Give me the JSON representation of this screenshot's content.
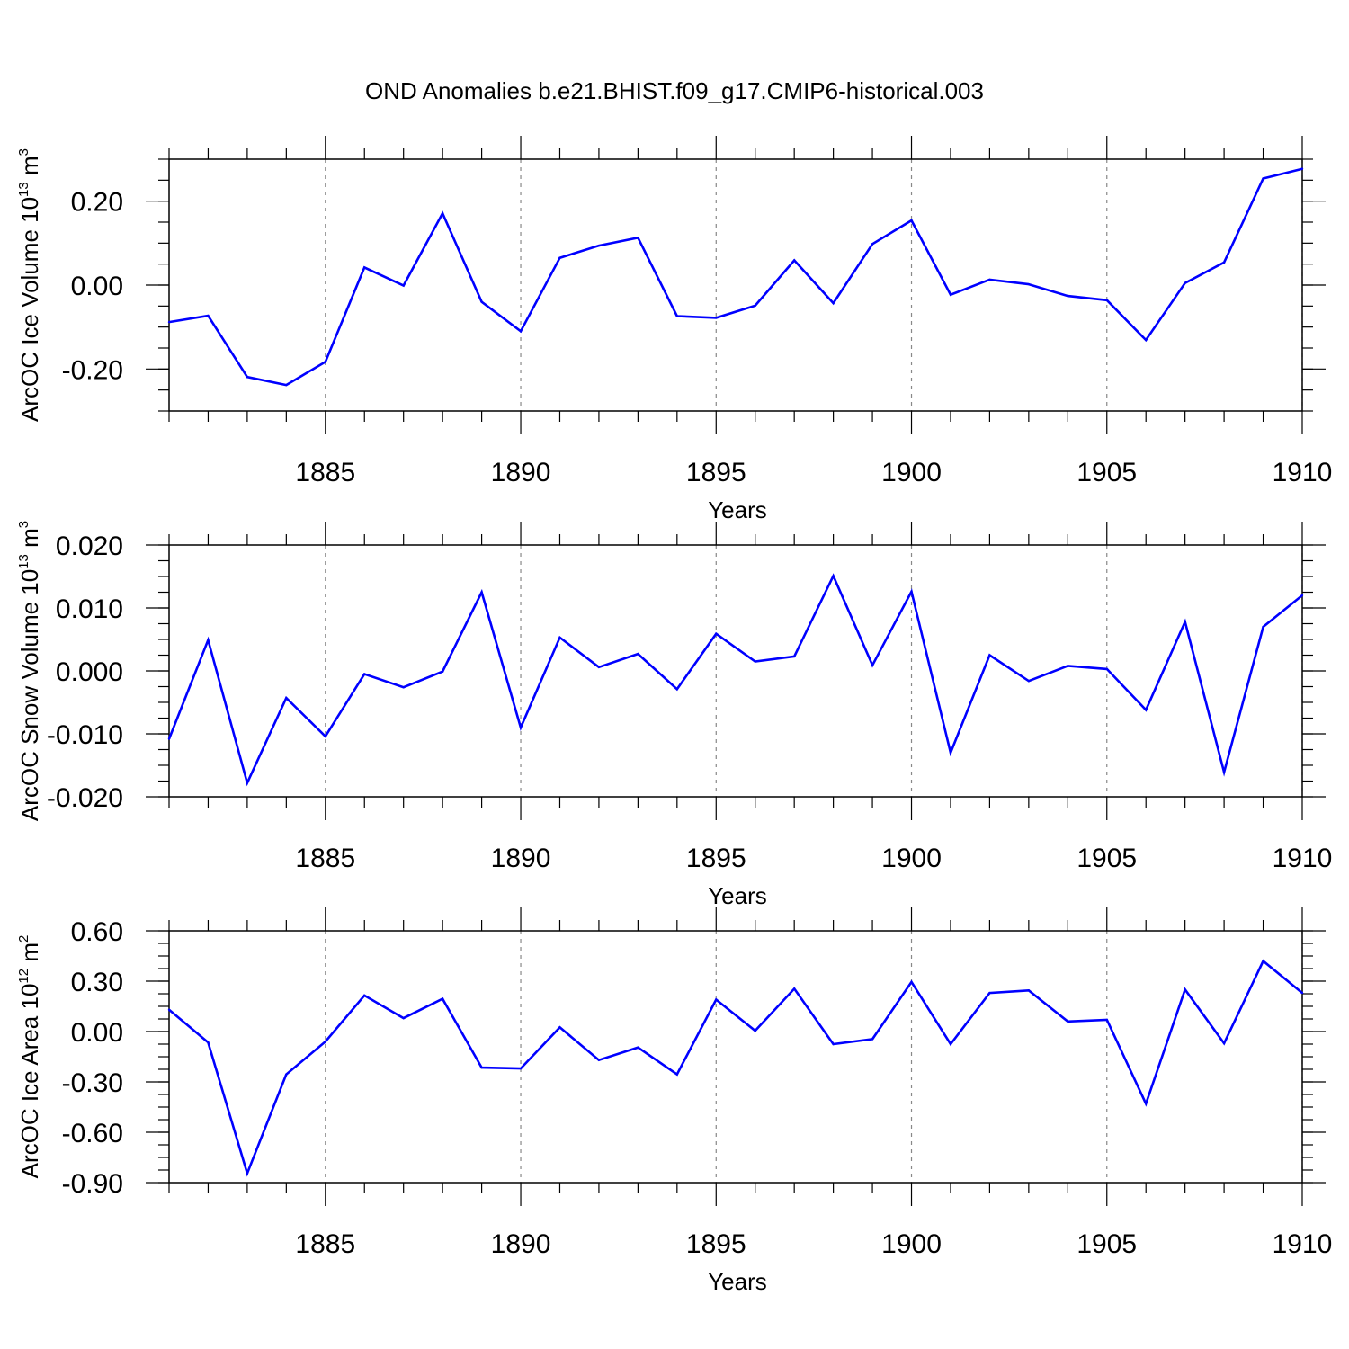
{
  "figure": {
    "title": "OND Anomalies b.e21.BHIST.f09_g17.CMIP6-historical.003",
    "line_color": "#0000ff",
    "grid_color": "#888888"
  },
  "chart_data": [
    {
      "type": "line",
      "title": "",
      "xlabel": "Years",
      "ylabel": {
        "prefix": "ArcOC Ice Volume 10",
        "exp": "13",
        "unit": " m",
        "unit_exp": "3"
      },
      "xlim": [
        1881,
        1910
      ],
      "ylim": [
        -0.3,
        0.3
      ],
      "x_ticks": [
        1885,
        1890,
        1895,
        1900,
        1905,
        1910
      ],
      "x_tick_labels": [
        "1885",
        "1890",
        "1895",
        "1900",
        "1905",
        "1910"
      ],
      "y_ticks": [
        -0.2,
        0.0,
        0.2
      ],
      "y_tick_labels": [
        "-0.20",
        "0.00",
        "0.20"
      ],
      "y_minor_step": 0.05,
      "grid": "vertical-dashed",
      "x": [
        1881,
        1882,
        1883,
        1884,
        1885,
        1886,
        1887,
        1888,
        1889,
        1890,
        1891,
        1892,
        1893,
        1894,
        1895,
        1896,
        1897,
        1898,
        1899,
        1900,
        1901,
        1902,
        1903,
        1904,
        1905,
        1906,
        1907,
        1908,
        1909,
        1910
      ],
      "values": [
        -0.088,
        -0.073,
        -0.219,
        -0.238,
        -0.183,
        0.042,
        -0.001,
        0.171,
        -0.04,
        -0.11,
        0.065,
        0.094,
        0.113,
        -0.074,
        -0.078,
        -0.049,
        0.059,
        -0.043,
        0.098,
        0.154,
        -0.023,
        0.013,
        0.002,
        -0.026,
        -0.036,
        -0.131,
        0.005,
        0.054,
        0.254,
        0.277
      ]
    },
    {
      "type": "line",
      "title": "",
      "xlabel": "Years",
      "ylabel": {
        "prefix": "ArcOC Snow Volume 10",
        "exp": "13",
        "unit": " m",
        "unit_exp": "3"
      },
      "xlim": [
        1881,
        1910
      ],
      "ylim": [
        -0.02,
        0.02
      ],
      "x_ticks": [
        1885,
        1890,
        1895,
        1900,
        1905,
        1910
      ],
      "x_tick_labels": [
        "1885",
        "1890",
        "1895",
        "1900",
        "1905",
        "1910"
      ],
      "y_ticks": [
        -0.02,
        -0.01,
        0.0,
        0.01,
        0.02
      ],
      "y_tick_labels": [
        "-0.020",
        "-0.010",
        "0.000",
        "0.010",
        "0.020"
      ],
      "y_minor_step": 0.0025,
      "grid": "vertical-dashed",
      "x": [
        1881,
        1882,
        1883,
        1884,
        1885,
        1886,
        1887,
        1888,
        1889,
        1890,
        1891,
        1892,
        1893,
        1894,
        1895,
        1896,
        1897,
        1898,
        1899,
        1900,
        1901,
        1902,
        1903,
        1904,
        1905,
        1906,
        1907,
        1908,
        1909,
        1910
      ],
      "values": [
        -0.0108,
        0.0049,
        -0.0178,
        -0.0043,
        -0.0104,
        -0.0005,
        -0.0026,
        -0.0001,
        0.0125,
        -0.009,
        0.0053,
        0.0006,
        0.0027,
        -0.0029,
        0.0059,
        0.0015,
        0.0023,
        0.0151,
        0.0009,
        0.0126,
        -0.013,
        0.0025,
        -0.0016,
        0.0008,
        0.0003,
        -0.0062,
        0.0078,
        -0.0161,
        0.007,
        0.012
      ]
    },
    {
      "type": "line",
      "title": "",
      "xlabel": "Years",
      "ylabel": {
        "prefix": "ArcOC Ice Area 10",
        "exp": "12",
        "unit": " m",
        "unit_exp": "2"
      },
      "xlim": [
        1881,
        1910
      ],
      "ylim": [
        -0.9,
        0.6
      ],
      "x_ticks": [
        1885,
        1890,
        1895,
        1900,
        1905,
        1910
      ],
      "x_tick_labels": [
        "1885",
        "1890",
        "1895",
        "1900",
        "1905",
        "1910"
      ],
      "y_ticks": [
        -0.9,
        -0.6,
        -0.3,
        0.0,
        0.3,
        0.6
      ],
      "y_tick_labels": [
        "-0.90",
        "-0.60",
        "-0.30",
        "0.00",
        "0.30",
        "0.60"
      ],
      "y_minor_step": 0.075,
      "grid": "vertical-dashed",
      "x": [
        1881,
        1882,
        1883,
        1884,
        1885,
        1886,
        1887,
        1888,
        1889,
        1890,
        1891,
        1892,
        1893,
        1894,
        1895,
        1896,
        1897,
        1898,
        1899,
        1900,
        1901,
        1902,
        1903,
        1904,
        1905,
        1906,
        1907,
        1908,
        1909,
        1910
      ],
      "values": [
        0.13,
        -0.065,
        -0.845,
        -0.255,
        -0.06,
        0.215,
        0.08,
        0.195,
        -0.215,
        -0.22,
        0.025,
        -0.17,
        -0.095,
        -0.255,
        0.19,
        0.005,
        0.255,
        -0.075,
        -0.045,
        0.295,
        -0.075,
        0.23,
        0.245,
        0.06,
        0.07,
        -0.43,
        0.25,
        -0.07,
        0.42,
        0.23
      ]
    }
  ]
}
